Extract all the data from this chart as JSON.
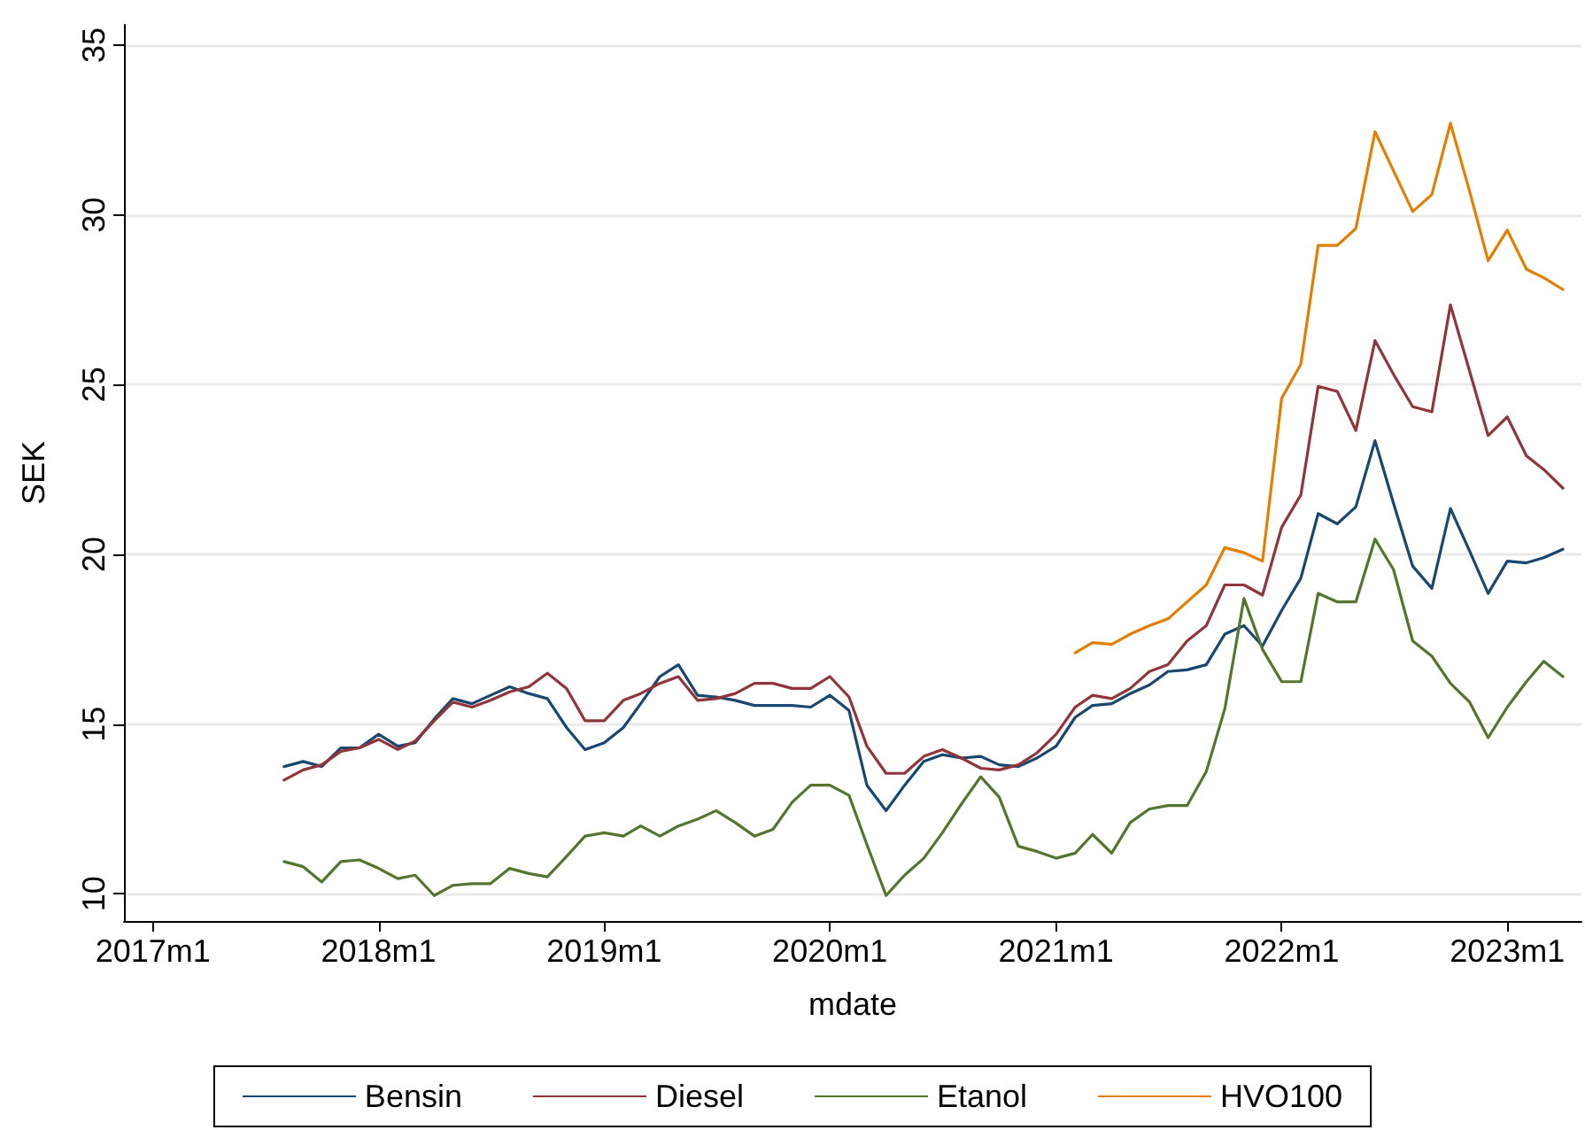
{
  "chart_data": {
    "type": "line",
    "xlabel": "mdate",
    "ylabel": "SEK",
    "x": [
      "2017-08",
      "2017-09",
      "2017-10",
      "2017-11",
      "2017-12",
      "2018-01",
      "2018-02",
      "2018-03",
      "2018-04",
      "2018-05",
      "2018-06",
      "2018-07",
      "2018-08",
      "2018-09",
      "2018-10",
      "2018-11",
      "2018-12",
      "2019-01",
      "2019-02",
      "2019-03",
      "2019-04",
      "2019-05",
      "2019-06",
      "2019-07",
      "2019-08",
      "2019-09",
      "2019-10",
      "2019-11",
      "2019-12",
      "2020-01",
      "2020-02",
      "2020-03",
      "2020-04",
      "2020-05",
      "2020-06",
      "2020-07",
      "2020-08",
      "2020-09",
      "2020-10",
      "2020-11",
      "2020-12",
      "2021-01",
      "2021-02",
      "2021-03",
      "2021-04",
      "2021-05",
      "2021-06",
      "2021-07",
      "2021-08",
      "2021-09",
      "2021-10",
      "2021-11",
      "2021-12",
      "2022-01",
      "2022-02",
      "2022-03",
      "2022-04",
      "2022-05",
      "2022-06",
      "2022-07",
      "2022-08",
      "2022-09",
      "2022-10",
      "2022-11",
      "2022-12",
      "2023-01",
      "2023-02",
      "2023-03",
      "2023-04"
    ],
    "series": [
      {
        "name": "Bensin",
        "color": "#1a476f",
        "values": [
          13.75,
          13.9,
          13.75,
          14.3,
          14.3,
          14.7,
          14.35,
          14.45,
          15.15,
          15.75,
          15.6,
          15.85,
          16.1,
          15.9,
          15.75,
          14.9,
          14.25,
          14.45,
          14.9,
          15.6,
          16.4,
          16.75,
          15.85,
          15.8,
          15.7,
          15.55,
          15.55,
          15.55,
          15.5,
          15.85,
          15.4,
          13.2,
          12.45,
          13.2,
          13.9,
          14.1,
          14.0,
          14.05,
          13.8,
          13.75,
          14.0,
          14.35,
          15.2,
          15.55,
          15.6,
          15.9,
          16.15,
          16.55,
          16.6,
          16.75,
          17.65,
          17.9,
          17.3,
          18.35,
          19.3,
          21.2,
          20.9,
          21.4,
          23.35,
          21.5,
          19.65,
          19.0,
          21.35,
          20.1,
          18.85,
          19.8,
          19.75,
          19.9,
          20.15
        ]
      },
      {
        "name": "Diesel",
        "color": "#90353b",
        "values": [
          13.35,
          13.65,
          13.8,
          14.2,
          14.3,
          14.55,
          14.25,
          14.5,
          15.1,
          15.65,
          15.5,
          15.7,
          15.95,
          16.1,
          16.5,
          16.05,
          15.1,
          15.1,
          15.7,
          15.9,
          16.2,
          16.4,
          15.7,
          15.75,
          15.9,
          16.2,
          16.2,
          16.05,
          16.05,
          16.4,
          15.8,
          14.35,
          13.55,
          13.55,
          14.05,
          14.25,
          14.0,
          13.7,
          13.65,
          13.8,
          14.15,
          14.7,
          15.5,
          15.85,
          15.75,
          16.05,
          16.55,
          16.75,
          17.45,
          17.9,
          19.1,
          19.1,
          18.8,
          20.8,
          21.75,
          24.95,
          24.8,
          23.65,
          26.3,
          25.3,
          24.35,
          24.2,
          27.35,
          25.4,
          23.5,
          24.05,
          22.9,
          22.5,
          21.95
        ]
      },
      {
        "name": "Etanol",
        "color": "#55752f",
        "values": [
          10.95,
          10.8,
          10.35,
          10.95,
          11.0,
          10.75,
          10.45,
          10.55,
          9.95,
          10.25,
          10.3,
          10.3,
          10.75,
          10.6,
          10.5,
          11.1,
          11.7,
          11.8,
          11.7,
          12.0,
          11.7,
          12.0,
          12.2,
          12.45,
          12.1,
          11.7,
          11.9,
          12.7,
          13.2,
          13.2,
          12.9,
          11.45,
          9.95,
          10.55,
          11.05,
          11.8,
          12.65,
          13.45,
          12.85,
          11.4,
          11.25,
          11.05,
          11.2,
          11.75,
          11.2,
          12.1,
          12.5,
          12.6,
          12.6,
          13.6,
          15.45,
          18.7,
          17.2,
          16.25,
          16.25,
          18.85,
          18.6,
          18.6,
          20.45,
          19.55,
          17.45,
          17.0,
          16.2,
          15.65,
          14.6,
          15.5,
          16.25,
          16.85,
          16.4
        ]
      },
      {
        "name": "HVO100",
        "color": "#e37e00",
        "values": [
          null,
          null,
          null,
          null,
          null,
          null,
          null,
          null,
          null,
          null,
          null,
          null,
          null,
          null,
          null,
          null,
          null,
          null,
          null,
          null,
          null,
          null,
          null,
          null,
          null,
          null,
          null,
          null,
          null,
          null,
          null,
          null,
          null,
          null,
          null,
          null,
          null,
          null,
          null,
          null,
          null,
          null,
          17.1,
          17.4,
          17.35,
          17.65,
          17.9,
          18.1,
          18.6,
          19.1,
          20.2,
          20.05,
          19.8,
          24.6,
          25.6,
          29.1,
          29.1,
          29.6,
          32.45,
          31.3,
          30.1,
          30.6,
          32.7,
          30.7,
          28.65,
          29.55,
          28.4,
          28.15,
          27.8
        ]
      }
    ],
    "xlim": [
      "2016-11-15",
      "2023-05"
    ],
    "xticks": [
      {
        "value": "2017-01",
        "label": "2017m1"
      },
      {
        "value": "2018-01",
        "label": "2018m1"
      },
      {
        "value": "2019-01",
        "label": "2019m1"
      },
      {
        "value": "2020-01",
        "label": "2020m1"
      },
      {
        "value": "2021-01",
        "label": "2021m1"
      },
      {
        "value": "2022-01",
        "label": "2022m1"
      },
      {
        "value": "2023-01",
        "label": "2023m1"
      }
    ],
    "ylim": [
      9.2,
      35.6
    ],
    "yticks": [
      10,
      15,
      20,
      25,
      30,
      35
    ],
    "grid": "y",
    "legend": "bottom",
    "marker": "none",
    "line_style": "solid"
  }
}
